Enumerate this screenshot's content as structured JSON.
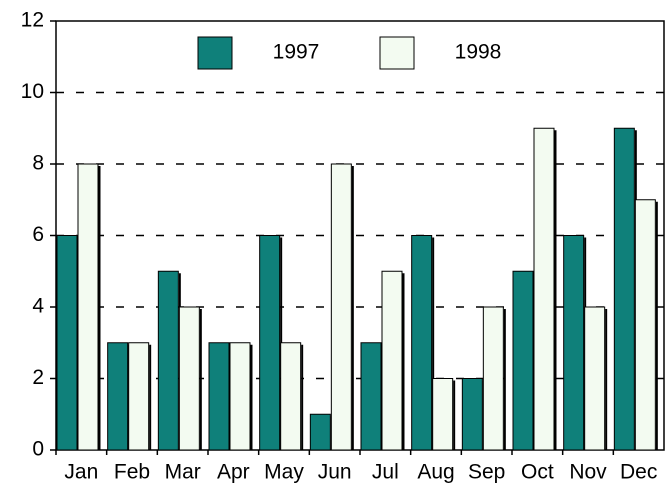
{
  "chart_data": {
    "type": "bar",
    "categories": [
      "Jan",
      "Feb",
      "Mar",
      "Apr",
      "May",
      "Jun",
      "Jul",
      "Aug",
      "Sep",
      "Oct",
      "Nov",
      "Dec"
    ],
    "series": [
      {
        "name": "1997",
        "color": "#0f807a",
        "values": [
          6,
          3,
          5,
          3,
          6,
          1,
          3,
          6,
          2,
          5,
          6,
          9
        ]
      },
      {
        "name": "1998",
        "color": "#f3fbf1",
        "values": [
          8,
          3,
          4,
          3,
          3,
          8,
          5,
          2,
          4,
          9,
          4,
          7
        ]
      }
    ],
    "ylim": [
      0,
      12
    ],
    "yticks": [
      0,
      2,
      4,
      6,
      8,
      10,
      12
    ],
    "grid": true,
    "legend": "top"
  }
}
